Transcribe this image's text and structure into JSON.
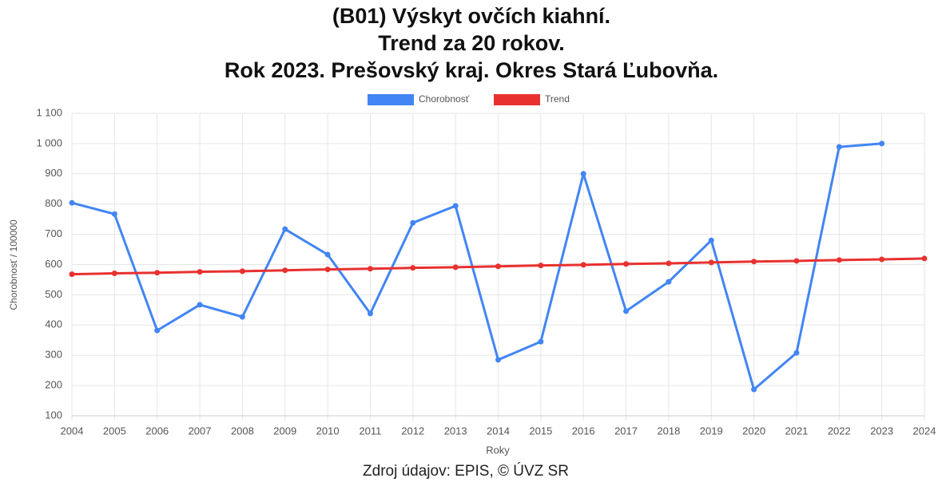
{
  "chart_data": {
    "type": "line",
    "title": [
      "(B01) Výskyt ovčích kiahní.",
      "Trend za 20 rokov.",
      "Rok 2023. Prešovský kraj. Okres Stará Ľubovňa."
    ],
    "xlabel": "Roky",
    "ylabel": "Chorobnosť / 100000",
    "source": "Zdroj údajov: EPIS, © ÚVZ SR",
    "categories": [
      "2004",
      "2005",
      "2006",
      "2007",
      "2008",
      "2009",
      "2010",
      "2011",
      "2012",
      "2013",
      "2014",
      "2015",
      "2016",
      "2017",
      "2018",
      "2019",
      "2020",
      "2021",
      "2022",
      "2023",
      "2024"
    ],
    "series": [
      {
        "name": "Chorobnosť",
        "color": "#4285f4",
        "values": [
          804,
          767,
          382,
          467,
          427,
          717,
          633,
          438,
          738,
          794,
          285,
          345,
          900,
          446,
          543,
          680,
          187,
          308,
          989,
          1000,
          null
        ]
      },
      {
        "name": "Trend",
        "color": "#e8312f",
        "values": [
          568,
          571,
          573,
          576,
          578,
          581,
          584,
          586,
          589,
          591,
          594,
          597,
          599,
          602,
          604,
          607,
          610,
          612,
          615,
          617,
          620
        ]
      }
    ],
    "ylim": [
      100,
      1100
    ],
    "yticks": [
      100,
      200,
      300,
      400,
      500,
      600,
      700,
      800,
      900,
      {
        "value": 1000,
        "label": "1 000"
      },
      {
        "value": 1100,
        "label": "1 100"
      }
    ],
    "grid": true,
    "legend": "top"
  }
}
